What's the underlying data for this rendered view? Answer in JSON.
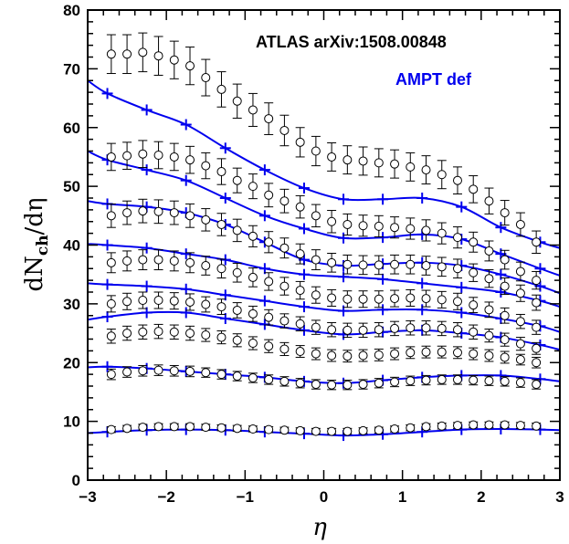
{
  "chart_data": {
    "type": "line",
    "xlabel": "η",
    "ylabel_main": "dN",
    "ylabel_sub": "ch",
    "ylabel_tail": "/dη",
    "xlim": [
      -3,
      3
    ],
    "ylim": [
      0,
      80
    ],
    "x_ticks": [
      "−3",
      "−2",
      "−1",
      "0",
      "1",
      "2",
      "3"
    ],
    "y_ticks": [
      "0",
      "10",
      "20",
      "30",
      "40",
      "50",
      "60",
      "70",
      "80"
    ],
    "annotations": [
      {
        "text": "ATLAS arXiv:1508.00848",
        "color": "#000000"
      },
      {
        "text": "AMPT def",
        "color": "#0000ee"
      }
    ],
    "colors": {
      "data": "#000000",
      "model": "#0000ee"
    },
    "data_series": [
      {
        "eta": [
          -2.7,
          -2.5,
          -2.3,
          -2.1,
          -1.9,
          -1.7,
          -1.5,
          -1.3,
          -1.1,
          -0.9,
          -0.7,
          -0.5,
          -0.3,
          -0.1,
          0.1,
          0.3,
          0.5,
          0.7,
          0.9,
          1.1,
          1.3,
          1.5,
          1.7,
          1.9,
          2.1,
          2.3,
          2.5,
          2.7
        ],
        "y": [
          72.5,
          72.5,
          72.8,
          72.2,
          71.5,
          70.5,
          68.5,
          66.5,
          64.5,
          63.0,
          61.5,
          59.5,
          57.5,
          56.0,
          55.0,
          54.5,
          54.3,
          54.0,
          53.8,
          53.3,
          52.8,
          52.0,
          51.0,
          49.5,
          47.5,
          45.5,
          43.5,
          40.5
        ],
        "err": [
          3.3,
          3.3,
          3.3,
          3.3,
          3.2,
          3.2,
          3.1,
          3.0,
          2.9,
          2.8,
          2.7,
          2.6,
          2.5,
          2.5,
          2.4,
          2.4,
          2.4,
          2.4,
          2.4,
          2.4,
          2.4,
          2.4,
          2.3,
          2.3,
          2.2,
          2.1,
          2.0,
          1.9
        ]
      },
      {
        "eta": [
          -2.7,
          -2.5,
          -2.3,
          -2.1,
          -1.9,
          -1.7,
          -1.5,
          -1.3,
          -1.1,
          -0.9,
          -0.7,
          -0.5,
          -0.3,
          -0.1,
          0.1,
          0.3,
          0.5,
          0.7,
          0.9,
          1.1,
          1.3,
          1.5,
          1.7,
          1.9,
          2.1,
          2.3,
          2.5,
          2.7
        ],
        "y": [
          55.0,
          55.2,
          55.5,
          55.3,
          55.0,
          54.5,
          53.5,
          52.5,
          51.0,
          50.0,
          48.5,
          47.5,
          46.5,
          45.0,
          44.0,
          43.5,
          43.3,
          43.2,
          43.0,
          42.8,
          42.5,
          42.0,
          41.3,
          40.5,
          39.0,
          37.5,
          35.5,
          34.0
        ],
        "err": [
          2.3,
          2.3,
          2.3,
          2.3,
          2.3,
          2.3,
          2.2,
          2.2,
          2.1,
          2.1,
          2.0,
          2.0,
          1.9,
          1.9,
          1.9,
          1.8,
          1.8,
          1.8,
          1.8,
          1.8,
          1.8,
          1.8,
          1.8,
          1.7,
          1.7,
          1.6,
          1.6,
          1.5
        ]
      },
      {
        "eta": [
          -2.7,
          -2.5,
          -2.3,
          -2.1,
          -1.9,
          -1.7,
          -1.5,
          -1.3,
          -1.1,
          -0.9,
          -0.7,
          -0.5,
          -0.3,
          -0.1,
          0.1,
          0.3,
          0.5,
          0.7,
          0.9,
          1.1,
          1.3,
          1.5,
          1.7,
          1.9,
          2.1,
          2.3,
          2.5,
          2.7
        ],
        "y": [
          45.0,
          45.5,
          45.8,
          45.7,
          45.5,
          45.0,
          44.3,
          43.5,
          42.5,
          41.5,
          40.5,
          39.5,
          38.5,
          37.5,
          37.0,
          36.7,
          36.6,
          36.6,
          36.7,
          36.7,
          36.5,
          36.3,
          36.0,
          35.3,
          34.3,
          33.0,
          31.8,
          30.2
        ],
        "err": [
          2.0,
          2.0,
          2.0,
          2.0,
          2.0,
          2.0,
          1.9,
          1.9,
          1.9,
          1.8,
          1.8,
          1.7,
          1.7,
          1.7,
          1.6,
          1.6,
          1.6,
          1.6,
          1.6,
          1.6,
          1.6,
          1.6,
          1.6,
          1.5,
          1.5,
          1.4,
          1.4,
          1.3
        ]
      },
      {
        "eta": [
          -2.7,
          -2.5,
          -2.3,
          -2.1,
          -1.9,
          -1.7,
          -1.5,
          -1.3,
          -1.1,
          -0.9,
          -0.7,
          -0.5,
          -0.3,
          -0.1,
          0.1,
          0.3,
          0.5,
          0.7,
          0.9,
          1.1,
          1.3,
          1.5,
          1.7,
          1.9,
          2.1,
          2.3,
          2.5,
          2.7
        ],
        "y": [
          37.0,
          37.3,
          37.5,
          37.5,
          37.3,
          37.0,
          36.5,
          36.0,
          35.3,
          34.5,
          33.8,
          33.0,
          32.3,
          31.5,
          31.0,
          30.8,
          30.8,
          30.8,
          30.9,
          31.0,
          30.9,
          30.7,
          30.4,
          29.8,
          29.0,
          28.0,
          27.0,
          26.0
        ],
        "err": [
          1.7,
          1.7,
          1.7,
          1.7,
          1.7,
          1.7,
          1.6,
          1.6,
          1.6,
          1.6,
          1.5,
          1.5,
          1.5,
          1.4,
          1.4,
          1.4,
          1.4,
          1.4,
          1.4,
          1.4,
          1.4,
          1.4,
          1.4,
          1.3,
          1.3,
          1.3,
          1.2,
          1.2
        ]
      },
      {
        "eta": [
          -2.7,
          -2.5,
          -2.3,
          -2.1,
          -1.9,
          -1.7,
          -1.5,
          -1.3,
          -1.1,
          -0.9,
          -0.7,
          -0.5,
          -0.3,
          -0.1,
          0.1,
          0.3,
          0.5,
          0.7,
          0.9,
          1.1,
          1.3,
          1.5,
          1.7,
          1.9,
          2.1,
          2.3,
          2.5,
          2.7
        ],
        "y": [
          30.0,
          30.4,
          30.6,
          30.6,
          30.5,
          30.3,
          29.9,
          29.5,
          28.9,
          28.3,
          27.7,
          27.1,
          26.6,
          26.0,
          25.6,
          25.5,
          25.5,
          25.6,
          25.8,
          25.9,
          25.9,
          25.8,
          25.6,
          25.2,
          24.6,
          23.9,
          23.2,
          22.4
        ],
        "err": [
          1.4,
          1.4,
          1.4,
          1.4,
          1.4,
          1.4,
          1.3,
          1.3,
          1.3,
          1.3,
          1.3,
          1.2,
          1.2,
          1.2,
          1.2,
          1.2,
          1.2,
          1.2,
          1.2,
          1.2,
          1.2,
          1.2,
          1.2,
          1.2,
          1.1,
          1.1,
          1.1,
          1.0
        ]
      },
      {
        "eta": [
          -2.7,
          -2.5,
          -2.3,
          -2.1,
          -1.9,
          -1.7,
          -1.5,
          -1.3,
          -1.1,
          -0.9,
          -0.7,
          -0.5,
          -0.3,
          -0.1,
          0.1,
          0.3,
          0.5,
          0.7,
          0.9,
          1.1,
          1.3,
          1.5,
          1.7,
          1.9,
          2.1,
          2.3,
          2.5,
          2.7
        ],
        "y": [
          24.5,
          25.0,
          25.2,
          25.3,
          25.2,
          25.0,
          24.7,
          24.3,
          23.8,
          23.3,
          22.8,
          22.3,
          21.9,
          21.5,
          21.2,
          21.1,
          21.2,
          21.3,
          21.5,
          21.7,
          21.8,
          21.8,
          21.7,
          21.5,
          21.2,
          20.9,
          20.5,
          20.0
        ],
        "err": [
          1.2,
          1.2,
          1.2,
          1.2,
          1.2,
          1.2,
          1.1,
          1.1,
          1.1,
          1.1,
          1.1,
          1.1,
          1.0,
          1.0,
          1.0,
          1.0,
          1.0,
          1.0,
          1.0,
          1.0,
          1.0,
          1.0,
          1.0,
          1.0,
          1.0,
          1.0,
          0.9,
          0.9
        ]
      },
      {
        "eta": [
          -2.7,
          -2.5,
          -2.3,
          -2.1,
          -1.9,
          -1.7,
          -1.5,
          -1.3,
          -1.1,
          -0.9,
          -0.7,
          -0.5,
          -0.3,
          -0.1,
          0.1,
          0.3,
          0.5,
          0.7,
          0.9,
          1.1,
          1.3,
          1.5,
          1.7,
          1.9,
          2.1,
          2.3,
          2.5,
          2.7
        ],
        "y": [
          18.0,
          18.4,
          18.6,
          18.7,
          18.6,
          18.5,
          18.3,
          18.0,
          17.7,
          17.4,
          17.1,
          16.8,
          16.5,
          16.3,
          16.2,
          16.2,
          16.3,
          16.5,
          16.7,
          16.9,
          17.0,
          17.1,
          17.1,
          17.0,
          16.9,
          16.8,
          16.6,
          16.3
        ],
        "err": [
          0.9,
          0.9,
          0.9,
          0.9,
          0.9,
          0.9,
          0.8,
          0.8,
          0.8,
          0.8,
          0.8,
          0.8,
          0.8,
          0.8,
          0.8,
          0.8,
          0.8,
          0.8,
          0.8,
          0.8,
          0.8,
          0.8,
          0.8,
          0.8,
          0.8,
          0.8,
          0.8,
          0.8
        ]
      },
      {
        "eta": [
          -2.7,
          -2.5,
          -2.3,
          -2.1,
          -1.9,
          -1.7,
          -1.5,
          -1.3,
          -1.1,
          -0.9,
          -0.7,
          -0.5,
          -0.3,
          -0.1,
          0.1,
          0.3,
          0.5,
          0.7,
          0.9,
          1.1,
          1.3,
          1.5,
          1.7,
          1.9,
          2.1,
          2.3,
          2.5,
          2.7
        ],
        "y": [
          8.6,
          8.8,
          9.0,
          9.1,
          9.1,
          9.1,
          9.0,
          8.9,
          8.8,
          8.7,
          8.6,
          8.5,
          8.4,
          8.3,
          8.3,
          8.3,
          8.4,
          8.5,
          8.7,
          8.9,
          9.1,
          9.2,
          9.3,
          9.4,
          9.4,
          9.4,
          9.3,
          9.2
        ],
        "err": [
          0.5,
          0.5,
          0.5,
          0.5,
          0.5,
          0.5,
          0.5,
          0.5,
          0.5,
          0.5,
          0.5,
          0.5,
          0.5,
          0.5,
          0.5,
          0.5,
          0.5,
          0.5,
          0.5,
          0.5,
          0.5,
          0.5,
          0.5,
          0.5,
          0.5,
          0.5,
          0.5,
          0.5
        ]
      }
    ],
    "model_series": [
      {
        "eta": [
          -3.0,
          -2.75,
          -2.25,
          -1.75,
          -1.25,
          -0.75,
          -0.25,
          0.25,
          0.75,
          1.25,
          1.75,
          2.25,
          2.75,
          3.0
        ],
        "y": [
          68.0,
          65.8,
          63.0,
          60.5,
          56.5,
          52.8,
          49.7,
          47.8,
          47.8,
          48.0,
          46.5,
          43.0,
          40.5,
          39.5
        ]
      },
      {
        "eta": [
          -3.0,
          -2.75,
          -2.25,
          -1.75,
          -1.25,
          -0.75,
          -0.25,
          0.25,
          0.75,
          1.25,
          1.75,
          2.25,
          2.75,
          3.0
        ],
        "y": [
          56.0,
          54.5,
          52.8,
          51.0,
          48.0,
          45.0,
          42.8,
          41.2,
          41.3,
          41.8,
          41.0,
          38.5,
          36.0,
          34.8
        ]
      },
      {
        "eta": [
          -3.0,
          -2.75,
          -2.25,
          -1.75,
          -1.25,
          -0.75,
          -0.25,
          0.25,
          0.75,
          1.25,
          1.75,
          2.25,
          2.75,
          3.0
        ],
        "y": [
          47.5,
          47.0,
          46.5,
          45.5,
          43.5,
          40.5,
          37.5,
          36.5,
          36.8,
          37.0,
          36.5,
          35.0,
          33.0,
          31.8
        ]
      },
      {
        "eta": [
          -3.0,
          -2.75,
          -2.25,
          -1.75,
          -1.25,
          -0.75,
          -0.25,
          0.25,
          0.75,
          1.25,
          1.75,
          2.25,
          2.75,
          3.0
        ],
        "y": [
          40.2,
          40.0,
          39.5,
          38.5,
          37.5,
          36.0,
          35.0,
          34.6,
          34.2,
          33.5,
          32.8,
          32.0,
          30.5,
          29.5
        ]
      },
      {
        "eta": [
          -3.0,
          -2.75,
          -2.25,
          -1.75,
          -1.25,
          -0.75,
          -0.25,
          0.25,
          0.75,
          1.25,
          1.75,
          2.25,
          2.75,
          3.0
        ],
        "y": [
          33.5,
          33.3,
          33.0,
          32.5,
          31.5,
          30.5,
          29.5,
          28.8,
          29.0,
          29.0,
          28.5,
          27.5,
          26.2,
          25.2
        ]
      },
      {
        "eta": [
          -3.0,
          -2.75,
          -2.25,
          -1.75,
          -1.25,
          -0.75,
          -0.25,
          0.25,
          0.75,
          1.25,
          1.75,
          2.25,
          2.75,
          3.0
        ],
        "y": [
          27.3,
          27.8,
          28.5,
          28.5,
          27.5,
          26.5,
          25.5,
          24.8,
          25.2,
          25.5,
          25.0,
          24.3,
          23.0,
          22.2
        ]
      },
      {
        "eta": [
          -3.0,
          -2.75,
          -2.25,
          -1.75,
          -1.25,
          -0.75,
          -0.25,
          0.25,
          0.75,
          1.25,
          1.75,
          2.25,
          2.75,
          3.0
        ],
        "y": [
          19.2,
          19.3,
          19.0,
          18.5,
          18.0,
          17.5,
          16.8,
          16.5,
          17.0,
          17.5,
          17.8,
          17.8,
          17.2,
          16.8
        ]
      },
      {
        "eta": [
          -3.0,
          -2.75,
          -2.25,
          -1.75,
          -1.25,
          -0.75,
          -0.25,
          0.25,
          0.75,
          1.25,
          1.75,
          2.25,
          2.75,
          3.0
        ],
        "y": [
          8.0,
          8.2,
          8.5,
          8.6,
          8.5,
          8.2,
          7.9,
          7.6,
          7.8,
          8.2,
          8.6,
          8.7,
          8.6,
          8.5
        ]
      }
    ]
  }
}
